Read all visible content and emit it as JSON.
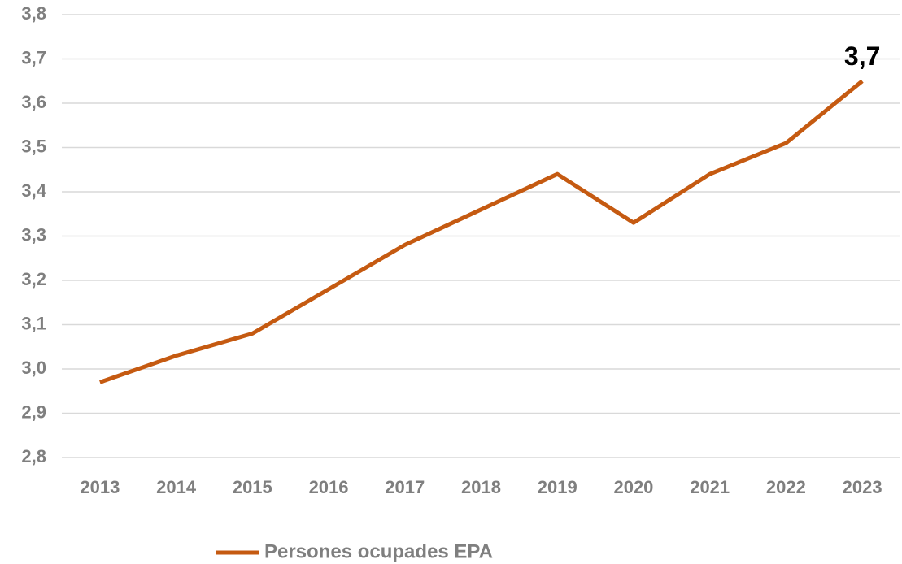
{
  "chart_data": {
    "type": "line",
    "categories": [
      "2013",
      "2014",
      "2015",
      "2016",
      "2017",
      "2018",
      "2019",
      "2020",
      "2021",
      "2022",
      "2023"
    ],
    "series": [
      {
        "name": "Persones ocupades EPA",
        "color": "#c55a11",
        "values": [
          2.97,
          3.03,
          3.08,
          3.18,
          3.28,
          3.36,
          3.44,
          3.33,
          3.44,
          3.51,
          3.65
        ],
        "value_labels": [
          null,
          null,
          null,
          null,
          null,
          null,
          null,
          null,
          null,
          null,
          "3,7"
        ]
      }
    ],
    "ylim": [
      2.8,
      3.8
    ],
    "yticks": [
      {
        "value": 2.8,
        "label": "2,8"
      },
      {
        "value": 2.9,
        "label": "2,9"
      },
      {
        "value": 3.0,
        "label": "3,0"
      },
      {
        "value": 3.1,
        "label": "3,1"
      },
      {
        "value": 3.2,
        "label": "3,2"
      },
      {
        "value": 3.3,
        "label": "3,3"
      },
      {
        "value": 3.4,
        "label": "3,4"
      },
      {
        "value": 3.5,
        "label": "3,5"
      },
      {
        "value": 3.6,
        "label": "3,6"
      },
      {
        "value": 3.7,
        "label": "3,7"
      },
      {
        "value": 3.8,
        "label": "3,8"
      }
    ],
    "grid": true,
    "legend": "bottom"
  }
}
